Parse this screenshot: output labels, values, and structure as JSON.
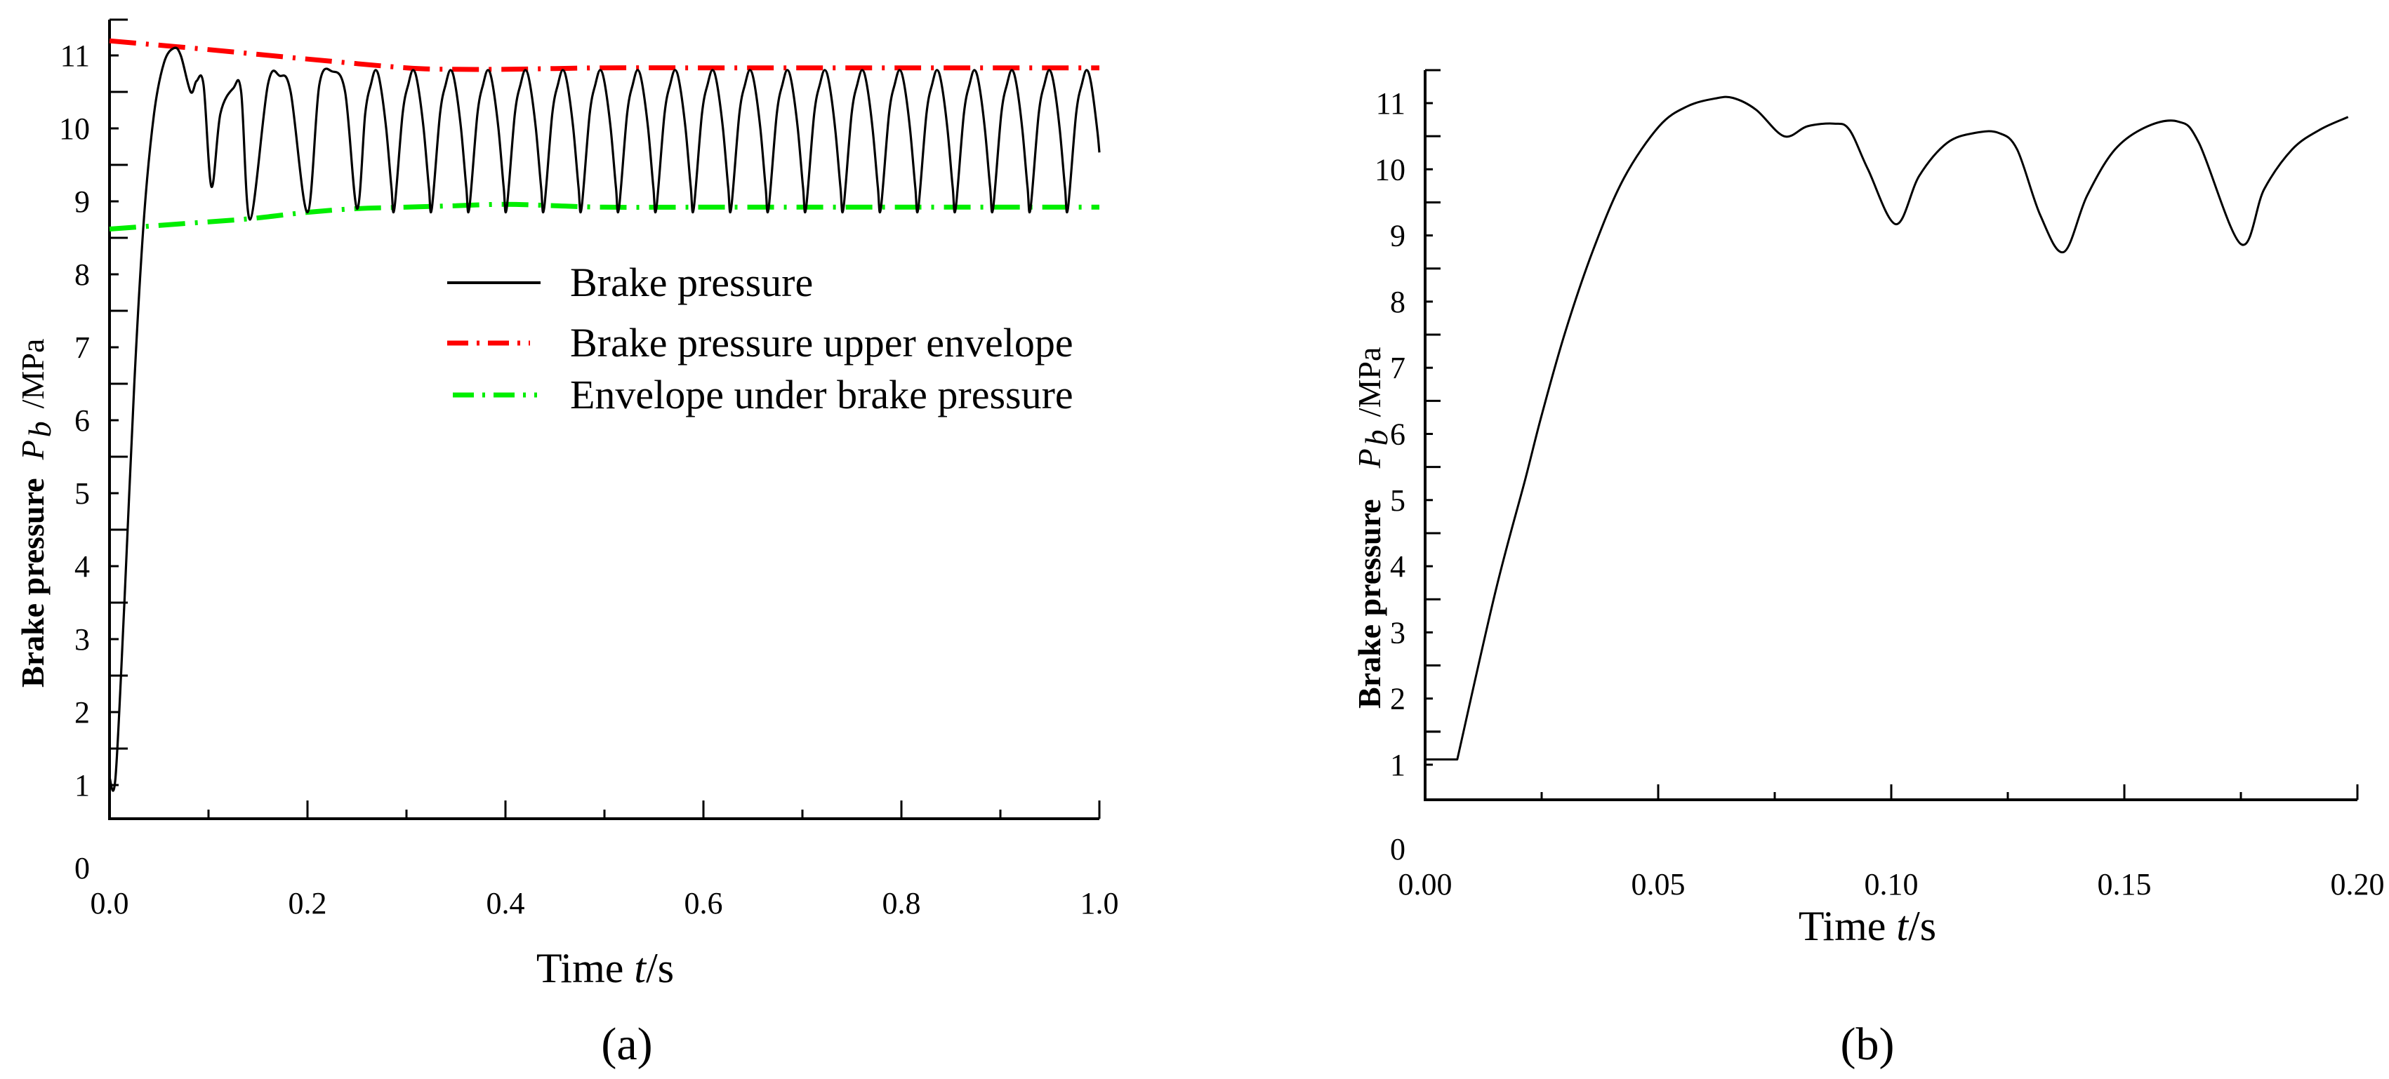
{
  "chart_data": [
    {
      "id": "a",
      "type": "line",
      "panel_label": "(a)",
      "xlabel": "Time t/s",
      "xlabel_parts": {
        "prefix": "Time ",
        "var": "t",
        "suffix": "/s"
      },
      "ylabel": "Brake pressure Pb /MPa",
      "ylabel_parts": {
        "bold": "Brake pressure",
        "var": "P",
        "sub": "b",
        "unit": "/MPa"
      },
      "xlim": [
        0.0,
        1.0
      ],
      "ylim": [
        0.5,
        11.5
      ],
      "x_ticks": [
        "0.0",
        "0.2",
        "0.4",
        "0.6",
        "0.8",
        "1.0"
      ],
      "x_tick_values": [
        0.0,
        0.2,
        0.4,
        0.6,
        0.8,
        1.0
      ],
      "x_minor_tick_values": [
        0.1,
        0.3,
        0.5,
        0.7,
        0.9
      ],
      "y_ticks": [
        "0",
        "1",
        "2",
        "3",
        "4",
        "5",
        "6",
        "7",
        "8",
        "9",
        "10",
        "11"
      ],
      "y_tick_values": [
        0,
        1,
        2,
        3,
        4,
        5,
        6,
        7,
        8,
        9,
        10,
        11
      ],
      "grid": false,
      "legend_position": "upper-middle",
      "legend": [
        {
          "label": "Brake pressure",
          "color": "#000000",
          "style": "solid"
        },
        {
          "label": "Brake pressure upper envelope",
          "color": "#ff0000",
          "style": "dash-dot"
        },
        {
          "label": "Envelope under brake pressure",
          "color": "#00ee00",
          "style": "dash-dot"
        }
      ],
      "series": [
        {
          "name": "Brake pressure",
          "color": "#000000",
          "x": [
            0.0,
            0.006,
            0.015,
            0.025,
            0.035,
            0.045,
            0.055,
            0.065,
            0.072,
            0.082,
            0.088,
            0.095,
            0.103,
            0.112,
            0.125,
            0.133,
            0.142,
            0.16,
            0.172,
            0.183,
            0.2,
            0.212,
            0.225,
            0.238,
            0.25
          ],
          "values": [
            1.1,
            1.1,
            3.5,
            6.5,
            8.8,
            10.2,
            10.9,
            11.1,
            11.0,
            10.5,
            10.65,
            10.6,
            9.2,
            10.2,
            10.55,
            10.5,
            8.75,
            10.6,
            10.72,
            10.5,
            8.85,
            10.6,
            10.78,
            10.5,
            8.9
          ],
          "steady_state": {
            "start": 0.25,
            "end": 1.0,
            "period": 0.0378,
            "peak": 10.8,
            "trough": 8.9,
            "end_value": 9.67
          }
        },
        {
          "name": "Brake pressure upper envelope",
          "color": "#ff0000",
          "x": [
            0.0,
            0.1,
            0.2,
            0.3,
            0.35,
            0.4,
            0.45,
            0.5,
            0.6,
            0.8,
            1.0
          ],
          "values": [
            11.2,
            11.08,
            10.95,
            10.83,
            10.81,
            10.81,
            10.82,
            10.83,
            10.83,
            10.83,
            10.83
          ]
        },
        {
          "name": "Envelope under brake pressure",
          "color": "#00ee00",
          "x": [
            0.0,
            0.07,
            0.14,
            0.2,
            0.25,
            0.3,
            0.35,
            0.4,
            0.45,
            0.5,
            0.6,
            0.8,
            1.0
          ],
          "values": [
            8.62,
            8.69,
            8.76,
            8.85,
            8.9,
            8.92,
            8.94,
            8.96,
            8.94,
            8.92,
            8.92,
            8.92,
            8.92
          ]
        }
      ]
    },
    {
      "id": "b",
      "type": "line",
      "panel_label": "(b)",
      "xlabel": "Time t/s",
      "xlabel_parts": {
        "prefix": "Time ",
        "var": "t",
        "suffix": "/s"
      },
      "ylabel": "Brake pressure Pb /MPa",
      "ylabel_parts": {
        "bold": "Brake pressure",
        "var": "P",
        "sub": "b",
        "unit": "/MPa"
      },
      "xlim": [
        0.0,
        0.2
      ],
      "ylim": [
        0.5,
        11.5
      ],
      "x_ticks": [
        "0.00",
        "0.05",
        "0.10",
        "0.15",
        "0.20"
      ],
      "x_tick_values": [
        0.0,
        0.05,
        0.1,
        0.15,
        0.2
      ],
      "x_minor_tick_values": [
        0.025,
        0.075,
        0.125,
        0.175
      ],
      "y_ticks": [
        "0",
        "1",
        "2",
        "3",
        "4",
        "5",
        "6",
        "7",
        "8",
        "9",
        "10",
        "11"
      ],
      "y_tick_values": [
        0,
        1,
        2,
        3,
        4,
        5,
        6,
        7,
        8,
        9,
        10,
        11
      ],
      "grid": false,
      "series": [
        {
          "name": "Brake pressure",
          "color": "#000000",
          "x": [
            0.0,
            0.0069,
            0.0151,
            0.0215,
            0.0251,
            0.0301,
            0.0361,
            0.0426,
            0.0502,
            0.0562,
            0.0622,
            0.066,
            0.071,
            0.077,
            0.082,
            0.0877,
            0.091,
            0.095,
            0.101,
            0.106,
            0.112,
            0.118,
            0.123,
            0.127,
            0.132,
            0.137,
            0.142,
            0.148,
            0.155,
            0.1616,
            0.166,
            0.175,
            0.18,
            0.186,
            0.192,
            0.198
          ],
          "values": [
            1.08,
            1.08,
            3.62,
            5.32,
            6.31,
            7.55,
            8.79,
            9.86,
            10.65,
            10.95,
            11.07,
            11.08,
            10.9,
            10.5,
            10.65,
            10.69,
            10.6,
            10.0,
            9.17,
            9.9,
            10.4,
            10.55,
            10.55,
            10.3,
            9.3,
            8.75,
            9.6,
            10.3,
            10.65,
            10.72,
            10.4,
            8.87,
            9.7,
            10.3,
            10.6,
            10.79
          ]
        }
      ]
    }
  ]
}
